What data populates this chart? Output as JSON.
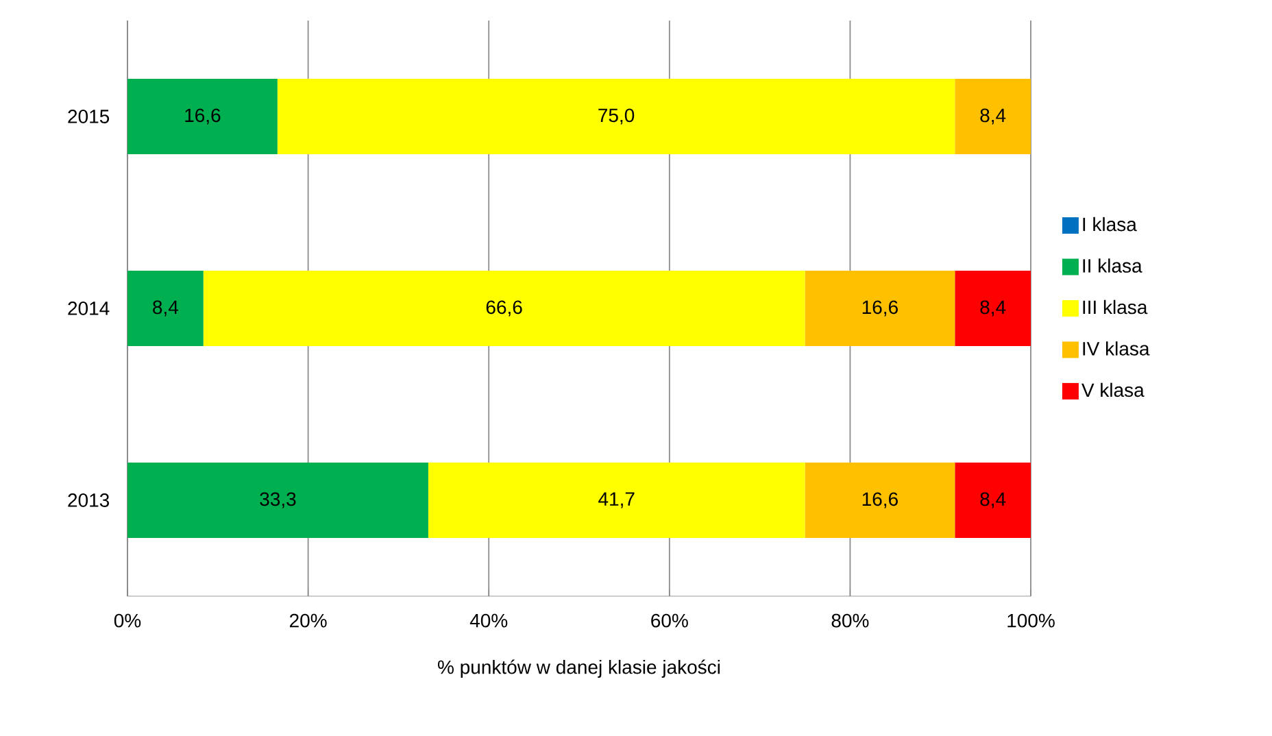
{
  "chart_data": {
    "type": "bar",
    "orientation": "horizontal",
    "stacked": true,
    "xlabel": "% punktów w danej klasie  jakości",
    "categories": [
      "2015",
      "2014",
      "2013"
    ],
    "series": [
      {
        "name": "I klasa",
        "color": "#0070c0",
        "values": [
          null,
          null,
          null
        ]
      },
      {
        "name": "II klasa",
        "color": "#00b050",
        "values": [
          16.6,
          8.4,
          33.3
        ],
        "value_labels": [
          "16,6",
          "8,4",
          "33,3"
        ]
      },
      {
        "name": "III klasa",
        "color": "#ffff00",
        "values": [
          75.0,
          66.6,
          41.7
        ],
        "value_labels": [
          "75,0",
          "66,6",
          "41,7"
        ]
      },
      {
        "name": "IV klasa",
        "color": "#ffc000",
        "values": [
          8.4,
          16.6,
          16.6
        ],
        "value_labels": [
          "8,4",
          "16,6",
          "16,6"
        ]
      },
      {
        "name": "V klasa",
        "color": "#ff0000",
        "values": [
          null,
          8.4,
          8.4
        ],
        "value_labels": [
          null,
          "8,4",
          "8,4"
        ]
      }
    ],
    "xlim": [
      0,
      100
    ],
    "xticks": [
      {
        "value": 0,
        "label": "0%"
      },
      {
        "value": 20,
        "label": "20%"
      },
      {
        "value": 40,
        "label": "40%"
      },
      {
        "value": 60,
        "label": "60%"
      },
      {
        "value": 80,
        "label": "80%"
      },
      {
        "value": 100,
        "label": "100%"
      }
    ],
    "grid": "x",
    "legend": "right"
  }
}
